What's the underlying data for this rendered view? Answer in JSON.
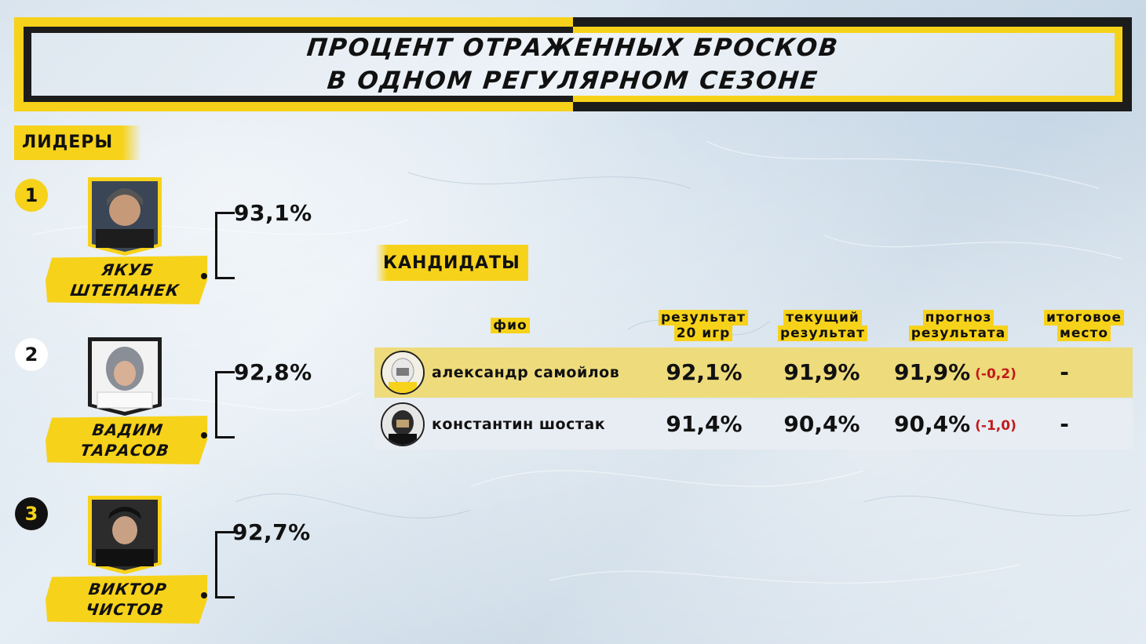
{
  "title": {
    "line1": "процент отраженных бросков",
    "line2": "в одном регулярном сезоне"
  },
  "leaders": {
    "label": "ЛИДЕРЫ",
    "items": [
      {
        "rank": "1",
        "first": "якуб",
        "last": "штепанек",
        "pct": "93,1%",
        "rank_color": "#f7d21a"
      },
      {
        "rank": "2",
        "first": "вадим",
        "last": "тарасов",
        "pct": "92,8%",
        "rank_color": "#ffffff"
      },
      {
        "rank": "3",
        "first": "виктор",
        "last": "чистов",
        "pct": "92,7%",
        "rank_color": "#111111"
      }
    ]
  },
  "candidates": {
    "label": "КАНДИДАТЫ",
    "headers": {
      "name": "фио",
      "result20_l1": "результат",
      "result20_l2": "20 игр",
      "current_l1": "текущий",
      "current_l2": "результат",
      "forecast_l1": "прогноз",
      "forecast_l2": "результата",
      "place_l1": "итоговое",
      "place_l2": "место"
    },
    "rows": [
      {
        "name": "александр самойлов",
        "result20": "92,1%",
        "current": "91,9%",
        "forecast": "91,9%",
        "delta": "(-0,2)",
        "place": "-"
      },
      {
        "name": "константин шостак",
        "result20": "91,4%",
        "current": "90,4%",
        "forecast": "90,4%",
        "delta": "(-1,0)",
        "place": "-"
      }
    ]
  },
  "colors": {
    "accent": "#f7d21a",
    "dark": "#1c1c1c",
    "delta": "#c01b1b"
  }
}
